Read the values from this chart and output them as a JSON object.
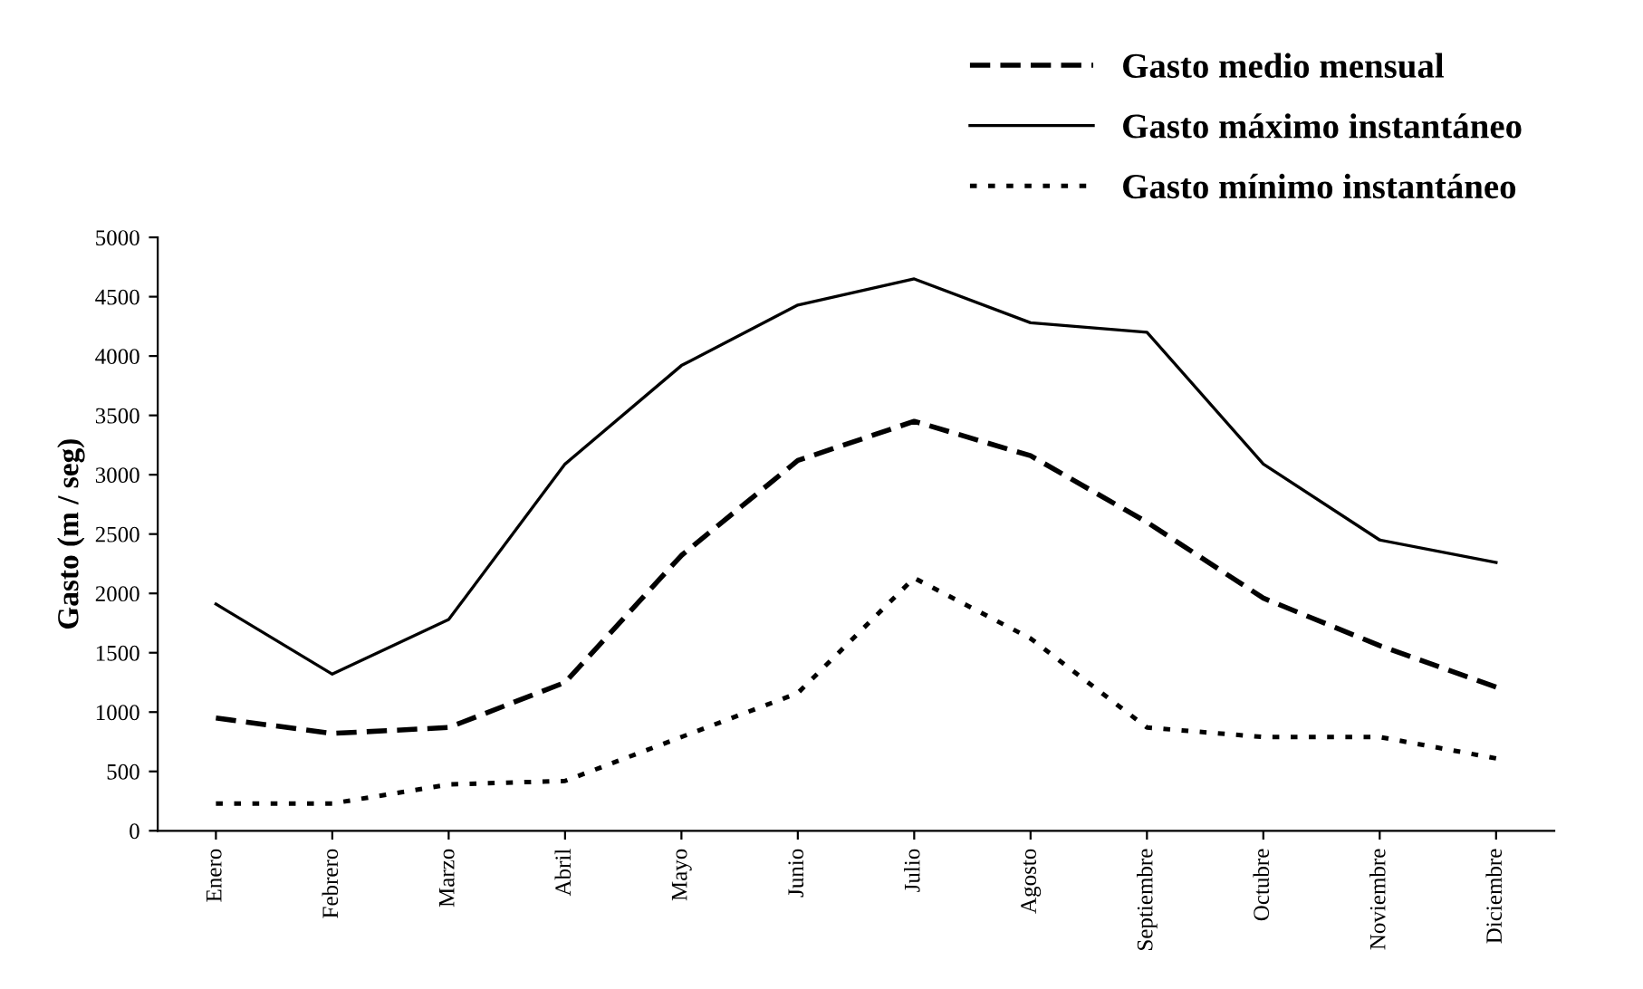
{
  "chart_data": {
    "type": "line",
    "ylabel": "Gasto (m / seg)",
    "categories": [
      "Enero",
      "Febrero",
      "Marzo",
      "Abril",
      "Mayo",
      "Junio",
      "Julio",
      "Agosto",
      "Septiembre",
      "Octubre",
      "Noviembre",
      "Diciembre"
    ],
    "series": [
      {
        "name": "Gasto medio mensual",
        "color": "#000000",
        "line_style": "dashed",
        "values": [
          950,
          820,
          870,
          1250,
          2320,
          3120,
          3450,
          3160,
          2600,
          1960,
          1560,
          1210
        ]
      },
      {
        "name": "Gasto máximo instantáneo",
        "color": "#000000",
        "line_style": "solid",
        "values": [
          1910,
          1320,
          1780,
          3090,
          3920,
          4430,
          4650,
          4280,
          4200,
          3090,
          2450,
          2260
        ]
      },
      {
        "name": "Gasto mínimo instantáneo",
        "color": "#000000",
        "line_style": "dotted",
        "values": [
          230,
          230,
          390,
          420,
          790,
          1160,
          2130,
          1620,
          870,
          790,
          790,
          610
        ]
      }
    ],
    "ylim": [
      0,
      5000
    ],
    "yticks": [
      0,
      500,
      1000,
      1500,
      2000,
      2500,
      3000,
      3500,
      4000,
      4500,
      5000
    ],
    "grid": false,
    "legend": "top right",
    "marker": "none"
  }
}
